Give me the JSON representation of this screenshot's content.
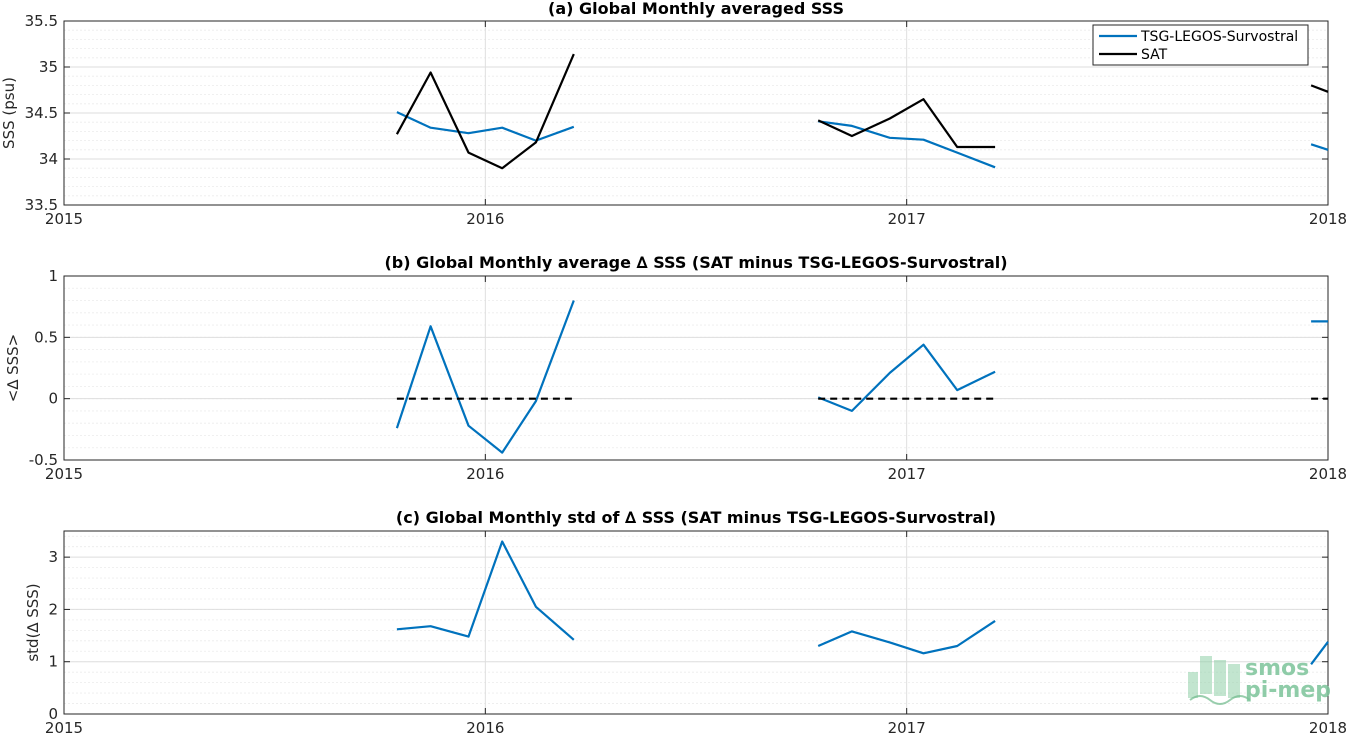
{
  "colors": {
    "tsg": "#0072BD",
    "sat": "#000000",
    "grid": "#dedede",
    "axis": "#262626"
  },
  "legend": {
    "entries": [
      "TSG-LEGOS-Survostral",
      "SAT"
    ],
    "placement": "top-right"
  },
  "logo": {
    "line1": "smos",
    "line2": "pi-mep"
  },
  "chart_data": [
    {
      "id": "a",
      "type": "line",
      "title": "(a) Global Monthly averaged SSS",
      "ylabel": "SSS (psu)",
      "xlim": [
        2015,
        2018
      ],
      "ylim": [
        33.5,
        35.5
      ],
      "xticks": [
        2015,
        2016,
        2017,
        2018
      ],
      "xticklabels": [
        "2015",
        "2016",
        "2017",
        "2018"
      ],
      "yticks": [
        33.5,
        34,
        34.5,
        35,
        35.5
      ],
      "yticklabels": [
        "33.5",
        "34",
        "34.5",
        "35",
        "35.5"
      ],
      "minor_ygrid": 0.1,
      "grid": true,
      "series": [
        {
          "name": "TSG-LEGOS-Survostral",
          "color": "#0072BD",
          "dashed": false,
          "segments": [
            [
              [
                2015.79,
                34.51
              ],
              [
                2015.87,
                34.34
              ],
              [
                2015.96,
                34.28
              ],
              [
                2016.04,
                34.34
              ],
              [
                2016.12,
                34.2
              ],
              [
                2016.21,
                34.35
              ]
            ],
            [
              [
                2016.79,
                34.41
              ],
              [
                2016.87,
                34.36
              ],
              [
                2016.96,
                34.23
              ],
              [
                2017.04,
                34.21
              ],
              [
                2017.12,
                34.07
              ],
              [
                2017.21,
                33.91
              ]
            ],
            [
              [
                2017.96,
                34.16
              ],
              [
                2018.0,
                34.1
              ]
            ]
          ]
        },
        {
          "name": "SAT",
          "color": "#000000",
          "dashed": false,
          "segments": [
            [
              [
                2015.79,
                34.27
              ],
              [
                2015.87,
                34.94
              ],
              [
                2015.96,
                34.07
              ],
              [
                2016.04,
                33.9
              ],
              [
                2016.12,
                34.18
              ],
              [
                2016.21,
                35.14
              ]
            ],
            [
              [
                2016.79,
                34.42
              ],
              [
                2016.87,
                34.25
              ],
              [
                2016.96,
                34.44
              ],
              [
                2017.04,
                34.65
              ],
              [
                2017.12,
                34.13
              ],
              [
                2017.21,
                34.13
              ]
            ],
            [
              [
                2017.96,
                34.8
              ],
              [
                2018.0,
                34.73
              ]
            ]
          ]
        }
      ]
    },
    {
      "id": "b",
      "type": "line",
      "title": "(b) Global Monthly average ∆ SSS (SAT minus TSG-LEGOS-Survostral)",
      "ylabel": "<∆ SSS>",
      "xlim": [
        2015,
        2018
      ],
      "ylim": [
        -0.5,
        1
      ],
      "xticks": [
        2015,
        2016,
        2017,
        2018
      ],
      "xticklabels": [
        "2015",
        "2016",
        "2017",
        "2018"
      ],
      "yticks": [
        -0.5,
        0,
        0.5,
        1
      ],
      "yticklabels": [
        "-0.5",
        "0",
        "0.5",
        "1"
      ],
      "minor_ygrid": 0.1,
      "grid": true,
      "series": [
        {
          "color": "#0072BD",
          "dashed": false,
          "segments": [
            [
              [
                2015.79,
                -0.24
              ],
              [
                2015.87,
                0.59
              ],
              [
                2015.96,
                -0.22
              ],
              [
                2016.04,
                -0.44
              ],
              [
                2016.12,
                -0.02
              ],
              [
                2016.21,
                0.8
              ]
            ],
            [
              [
                2016.79,
                0.01
              ],
              [
                2016.87,
                -0.1
              ],
              [
                2016.96,
                0.21
              ],
              [
                2017.04,
                0.44
              ],
              [
                2017.12,
                0.07
              ],
              [
                2017.21,
                0.22
              ]
            ],
            [
              [
                2017.96,
                0.63
              ],
              [
                2018.0,
                0.63
              ]
            ]
          ]
        },
        {
          "color": "#000000",
          "dashed": true,
          "segments": [
            [
              [
                2015.79,
                0
              ],
              [
                2016.21,
                0
              ]
            ],
            [
              [
                2016.79,
                0
              ],
              [
                2017.21,
                0
              ]
            ],
            [
              [
                2017.96,
                0
              ],
              [
                2018.0,
                0
              ]
            ]
          ]
        }
      ]
    },
    {
      "id": "c",
      "type": "line",
      "title": "(c) Global Monthly std of ∆ SSS (SAT minus TSG-LEGOS-Survostral)",
      "ylabel": "std(∆ SSS)",
      "xlim": [
        2015,
        2018
      ],
      "ylim": [
        0,
        3.5
      ],
      "xticks": [
        2015,
        2016,
        2017,
        2018
      ],
      "xticklabels": [
        "2015",
        "2016",
        "2017",
        "2018"
      ],
      "yticks": [
        0,
        1,
        2,
        3
      ],
      "yticklabels": [
        "0",
        "1",
        "2",
        "3"
      ],
      "minor_ygrid": 0.2,
      "grid": true,
      "series": [
        {
          "color": "#0072BD",
          "dashed": false,
          "segments": [
            [
              [
                2015.79,
                1.62
              ],
              [
                2015.87,
                1.68
              ],
              [
                2015.96,
                1.48
              ],
              [
                2016.04,
                3.3
              ],
              [
                2016.12,
                2.05
              ],
              [
                2016.21,
                1.42
              ]
            ],
            [
              [
                2016.79,
                1.3
              ],
              [
                2016.87,
                1.58
              ],
              [
                2016.96,
                1.37
              ],
              [
                2017.04,
                1.16
              ],
              [
                2017.12,
                1.3
              ],
              [
                2017.21,
                1.78
              ]
            ],
            [
              [
                2017.96,
                0.95
              ],
              [
                2018.0,
                1.38
              ]
            ]
          ]
        }
      ]
    }
  ]
}
